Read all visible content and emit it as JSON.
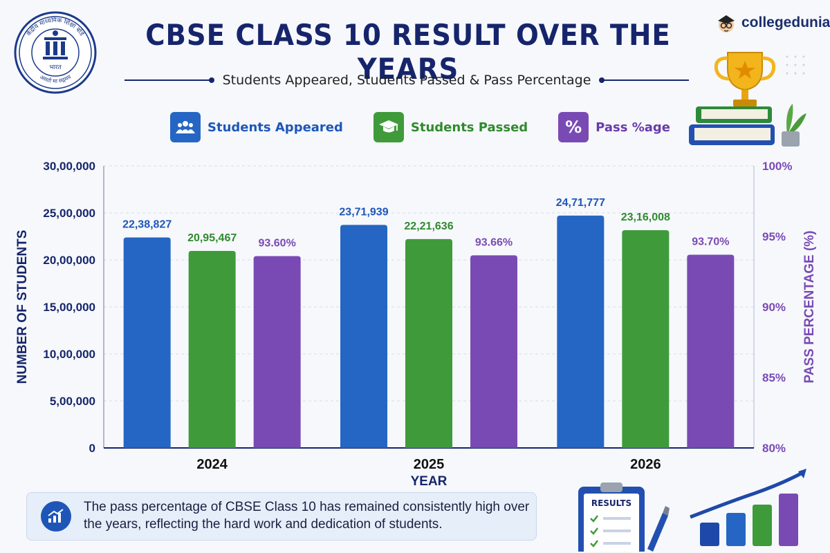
{
  "emblem": {
    "top_text": "केंद्रीय माध्यमिक शिक्षा बोर्ड",
    "center_text": "भारत",
    "bottom_text": "असतो मा सद्गमय"
  },
  "header": {
    "title": "CBSE CLASS 10 RESULT OVER THE YEARS",
    "subtitle": "Students Appeared, Students Passed & Pass Percentage"
  },
  "brand": {
    "name": "collegedunia"
  },
  "legend": [
    {
      "label": "Students Appeared",
      "color": "#2566c4",
      "icon": "users-icon"
    },
    {
      "label": "Students Passed",
      "color": "#3f9b3a",
      "icon": "graduation-cap-icon"
    },
    {
      "label": "Pass %age",
      "color": "#7a4ab4",
      "icon": "percent-icon",
      "symbol": "%"
    }
  ],
  "chart_data": {
    "type": "bar",
    "categories": [
      "2024",
      "2025",
      "2026"
    ],
    "xlabel": "YEAR",
    "ylabel": "NUMBER OF STUDENTS",
    "y2label": "PASS PERCENTAGE (%)",
    "ylim": [
      0,
      3000000
    ],
    "y2lim": [
      80,
      100
    ],
    "y_ticks": [
      "0",
      "5,00,000",
      "10,00,000",
      "15,00,000",
      "20,00,000",
      "25,00,000",
      "30,00,000"
    ],
    "y2_ticks": [
      "80%",
      "85%",
      "90%",
      "95%",
      "100%"
    ],
    "grid": true,
    "series": [
      {
        "name": "Students Appeared",
        "axis": "left",
        "color": "#2566c4",
        "values": [
          2238827,
          2371939,
          2471777
        ],
        "labels": [
          "22,38,827",
          "23,71,939",
          "24,71,777"
        ]
      },
      {
        "name": "Students Passed",
        "axis": "left",
        "color": "#3f9b3a",
        "values": [
          2095467,
          2221636,
          2316008
        ],
        "labels": [
          "20,95,467",
          "22,21,636",
          "23,16,008"
        ]
      },
      {
        "name": "Pass %age",
        "axis": "right",
        "color": "#7a4ab4",
        "values": [
          93.6,
          93.66,
          93.7
        ],
        "labels": [
          "93.60%",
          "93.66%",
          "93.70%"
        ]
      }
    ]
  },
  "note": {
    "icon": "trend-chart-icon",
    "text": "The pass percentage of CBSE Class 10 has remained consistently high over the years, reflecting the hard work and dedication of students."
  },
  "clipboard": {
    "title": "RESULTS"
  }
}
